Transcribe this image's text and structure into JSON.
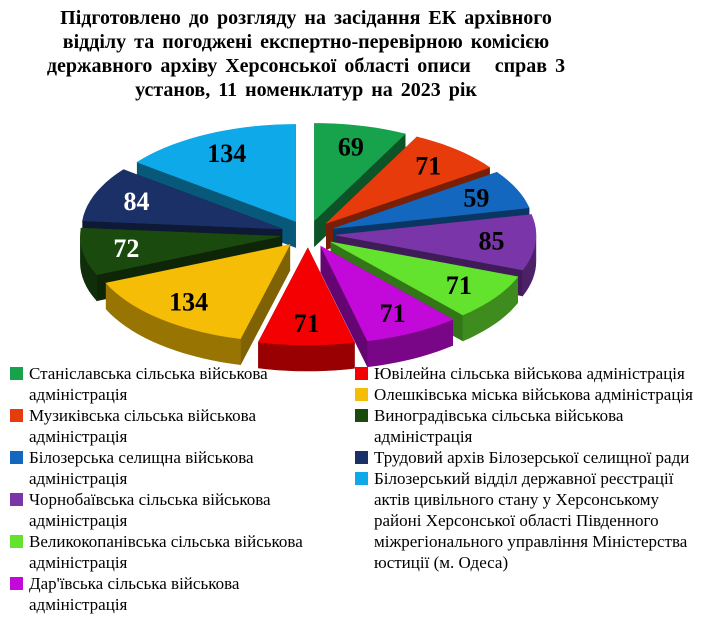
{
  "page": {
    "background": "#FFFFFF",
    "text_color": "#000000"
  },
  "title": {
    "lines": [
      "Підготовлено до розгляду на засідання ЕК архівного",
      "відділу та погоджені експертно-перевірною комісією",
      "державного архіву Херсонської області описи   справ 3",
      "установ, 11 номенклатур на 2023 рік"
    ]
  },
  "chart_data": {
    "type": "pie",
    "effect": "3d-exploded",
    "title": "Підготовлено до розгляду на засідання ЕК архівного відділу та погоджені експертно-перевірною комісією державного архіву Херсонської області описи справ 3 установ, 11 номенклатур на 2023 рік",
    "start_angle_deg": 0,
    "direction": "clockwise",
    "total": 921,
    "data_labels": "values",
    "legend_position": "bottom",
    "slices": [
      {
        "label": "Станіславська сільська військова адміністрація",
        "value": 69,
        "color": "#17A24C",
        "value_label_color": "#000000"
      },
      {
        "label": "Музиківська сільська військова адміністрація",
        "value": 71,
        "color": "#E83B0C",
        "value_label_color": "#000000"
      },
      {
        "label": "Білозерська селищна військова адміністрація",
        "value": 59,
        "color": "#1467BE",
        "value_label_color": "#000000"
      },
      {
        "label": "Чорнобаївська сільська військова адміністрація",
        "value": 85,
        "color": "#7A36A8",
        "value_label_color": "#000000"
      },
      {
        "label": "Великокопанівська сільська військова адміністрація",
        "value": 71,
        "color": "#63E22E",
        "value_label_color": "#000000"
      },
      {
        "label": "Дар'ївська сільська військова адміністрація",
        "value": 71,
        "color": "#C309D9",
        "value_label_color": "#000000"
      },
      {
        "label": "Ювілейна сільська військова адміністрація",
        "value": 71,
        "color": "#F50002",
        "value_label_color": "#000000"
      },
      {
        "label": "Олешківська міська військова адміністрація",
        "value": 134,
        "color": "#F5BD05",
        "value_label_color": "#000000"
      },
      {
        "label": "Виноградівська сільська військова адміністрація",
        "value": 72,
        "color": "#1A4A0E",
        "value_label_color": "#FFFFFF"
      },
      {
        "label": "Трудовий архів Білозерської селищної ради",
        "value": 84,
        "color": "#1A3066",
        "value_label_color": "#FFFFFF"
      },
      {
        "label": "Білозерський відділ державної реєстрації актів цивільного стану у Херсонському районі Херсонської області Південного міжрегіонального управління Міністерства юстиції (м. Одеса)",
        "value": 134,
        "color": "#0EA9E9",
        "value_label_color": "#000000"
      }
    ],
    "legend_columns": [
      [
        0,
        1,
        2,
        3,
        4,
        5
      ],
      [
        6,
        7,
        8,
        9,
        10
      ]
    ]
  }
}
